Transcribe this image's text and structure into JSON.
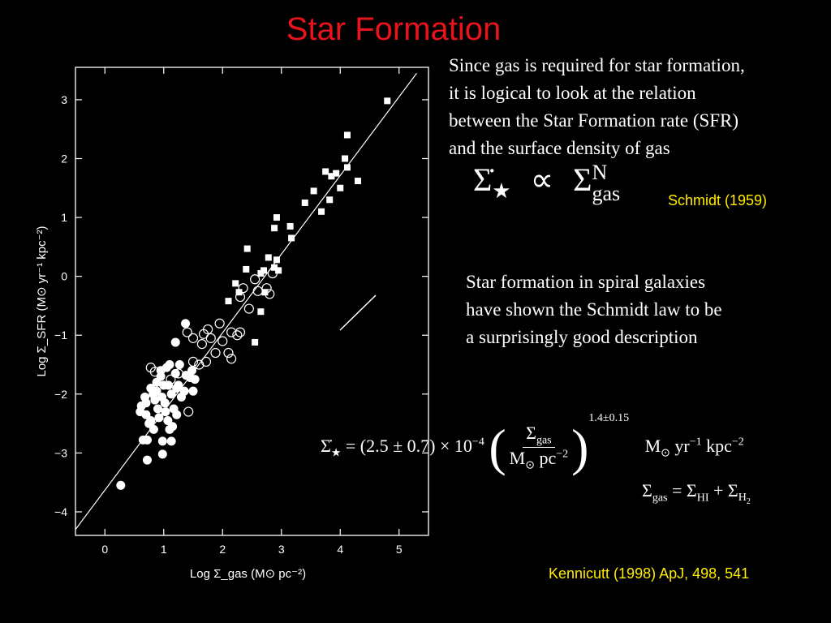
{
  "title": "Star Formation",
  "text_top": [
    "Since gas is required for star formation,",
    "it is logical to look at the relation",
    "between the Star Formation rate (SFR)",
    "and the surface density of gas"
  ],
  "text_mid": [
    "Star formation in spiral galaxies",
    "have shown the Schmidt law to be",
    "a surprisingly good description"
  ],
  "ref_schmidt": "Schmidt (1959)",
  "ref_kennicutt": "Kennicutt (1998) ApJ, 498, 541",
  "colors": {
    "title": "#e8141c",
    "ref": "#ffec00",
    "background": "#000000"
  },
  "chart_data": {
    "type": "scatter",
    "xlabel": "Log Σ_gas (M⊙ pc⁻²)",
    "ylabel": "Log Σ_SFR (M⊙ yr⁻¹ kpc⁻²)",
    "xlim": [
      -0.5,
      5.5
    ],
    "ylim": [
      -4.4,
      3.55
    ],
    "xticks": [
      0,
      1,
      2,
      3,
      4,
      5
    ],
    "yticks": [
      -4,
      -3,
      -2,
      -1,
      0,
      1,
      2,
      3
    ],
    "fit_line": {
      "x": [
        -0.5,
        5.3
      ],
      "y": [
        -4.3,
        3.45
      ]
    },
    "series": [
      {
        "marker": "filled-circle",
        "points": [
          [
            0.27,
            -3.55
          ],
          [
            0.62,
            -2.2
          ],
          [
            0.7,
            -2.35
          ],
          [
            0.78,
            -2.45
          ],
          [
            0.85,
            -2.1
          ],
          [
            0.92,
            -2.4
          ],
          [
            0.97,
            -2.05
          ],
          [
            1.03,
            -2.3
          ],
          [
            1.08,
            -1.85
          ],
          [
            0.88,
            -1.95
          ],
          [
            0.95,
            -1.7
          ],
          [
            1.1,
            -2.6
          ],
          [
            1.17,
            -2.25
          ],
          [
            1.22,
            -1.9
          ],
          [
            0.98,
            -2.8
          ],
          [
            0.72,
            -2.78
          ],
          [
            0.72,
            -3.12
          ],
          [
            0.98,
            -3.02
          ],
          [
            1.2,
            -1.65
          ],
          [
            1.27,
            -1.5
          ],
          [
            1.05,
            -1.55
          ],
          [
            1.2,
            -1.12
          ],
          [
            1.37,
            -0.8
          ],
          [
            1.5,
            -1.95
          ],
          [
            1.53,
            -1.75
          ],
          [
            1.48,
            -1.6
          ],
          [
            1.45,
            -1.72
          ],
          [
            0.82,
            -2.0
          ],
          [
            1.0,
            -1.85
          ],
          [
            1.13,
            -2.0
          ],
          [
            0.68,
            -2.05
          ],
          [
            0.75,
            -2.5
          ],
          [
            0.65,
            -2.78
          ],
          [
            1.15,
            -2.55
          ],
          [
            1.02,
            -2.15
          ],
          [
            0.83,
            -2.6
          ],
          [
            1.13,
            -2.8
          ],
          [
            0.9,
            -2.25
          ],
          [
            1.3,
            -2.05
          ],
          [
            0.78,
            -1.9
          ],
          [
            0.95,
            -1.6
          ],
          [
            1.1,
            -1.5
          ],
          [
            1.25,
            -1.85
          ],
          [
            1.38,
            -1.68
          ],
          [
            0.6,
            -2.3
          ],
          [
            0.88,
            -1.8
          ],
          [
            1.07,
            -2.45
          ],
          [
            1.35,
            -1.95
          ],
          [
            0.7,
            -2.15
          ],
          [
            1.22,
            -2.35
          ]
        ]
      },
      {
        "marker": "open-circle",
        "points": [
          [
            0.78,
            -1.55
          ],
          [
            0.85,
            -1.62
          ],
          [
            1.12,
            -1.75
          ],
          [
            1.25,
            -1.65
          ],
          [
            1.42,
            -2.3
          ],
          [
            1.5,
            -1.45
          ],
          [
            1.5,
            -1.05
          ],
          [
            1.68,
            -0.98
          ],
          [
            1.75,
            -0.9
          ],
          [
            1.8,
            -1.05
          ],
          [
            1.72,
            -1.45
          ],
          [
            1.6,
            -1.5
          ],
          [
            1.88,
            -1.3
          ],
          [
            2.1,
            -1.3
          ],
          [
            2.15,
            -1.4
          ],
          [
            2.15,
            -0.95
          ],
          [
            2.25,
            -1.0
          ],
          [
            2.3,
            -0.95
          ],
          [
            2.45,
            -0.55
          ],
          [
            2.35,
            -0.2
          ],
          [
            2.6,
            -0.25
          ],
          [
            2.75,
            -0.2
          ],
          [
            2.8,
            -0.3
          ],
          [
            2.3,
            -0.35
          ],
          [
            2.55,
            -0.05
          ],
          [
            2.85,
            0.05
          ],
          [
            1.4,
            -0.95
          ],
          [
            1.65,
            -1.15
          ],
          [
            2.0,
            -1.1
          ],
          [
            1.95,
            -0.8
          ]
        ]
      },
      {
        "marker": "filled-square",
        "points": [
          [
            2.1,
            -0.42
          ],
          [
            2.22,
            -0.12
          ],
          [
            2.28,
            -0.27
          ],
          [
            2.4,
            0.12
          ],
          [
            2.42,
            0.47
          ],
          [
            2.55,
            -1.12
          ],
          [
            2.65,
            -0.6
          ],
          [
            2.65,
            0.05
          ],
          [
            2.7,
            0.1
          ],
          [
            2.72,
            -0.27
          ],
          [
            2.78,
            0.32
          ],
          [
            2.88,
            0.15
          ],
          [
            2.92,
            0.28
          ],
          [
            2.92,
            1.0
          ],
          [
            2.88,
            0.82
          ],
          [
            2.95,
            0.1
          ],
          [
            3.17,
            0.65
          ],
          [
            3.15,
            0.85
          ],
          [
            3.4,
            1.25
          ],
          [
            3.55,
            1.45
          ],
          [
            3.68,
            1.1
          ],
          [
            3.75,
            1.78
          ],
          [
            3.82,
            1.3
          ],
          [
            3.85,
            1.7
          ],
          [
            3.93,
            1.75
          ],
          [
            4.0,
            1.5
          ],
          [
            4.08,
            2.0
          ],
          [
            4.12,
            2.4
          ],
          [
            4.12,
            1.85
          ],
          [
            4.3,
            1.62
          ],
          [
            4.8,
            2.98
          ]
        ]
      }
    ]
  },
  "eq1": {
    "lhs": "Σ̇",
    "lhs_sub": "★",
    "prop": "∝",
    "rhs": "Σ",
    "rhs_sup": "N",
    "rhs_sub": "gas"
  },
  "eq2": {
    "lhs": "Σ̇",
    "lhs_sub": "★",
    "coeff": "= (2.5 ± 0.7) × 10",
    "coeff_exp": "−4",
    "num": "Σ",
    "num_sub": "gas",
    "den": "M",
    "den_sub": "⊙",
    "den_rest": " pc",
    "den_exp": "−2",
    "exp": "1.4±0.15",
    "units": "M",
    "units_sub": "⊙",
    "units_rest": " yr",
    "units_exp1": "−1",
    "units_rest2": " kpc",
    "units_exp2": "−2"
  },
  "eq3": {
    "lhs": "Σ",
    "lhs_sub": "gas",
    "eq": " = Σ",
    "t1_sub": "HI",
    "plus": " + Σ",
    "t2_sub": "H",
    "t2_subsub": "2"
  }
}
